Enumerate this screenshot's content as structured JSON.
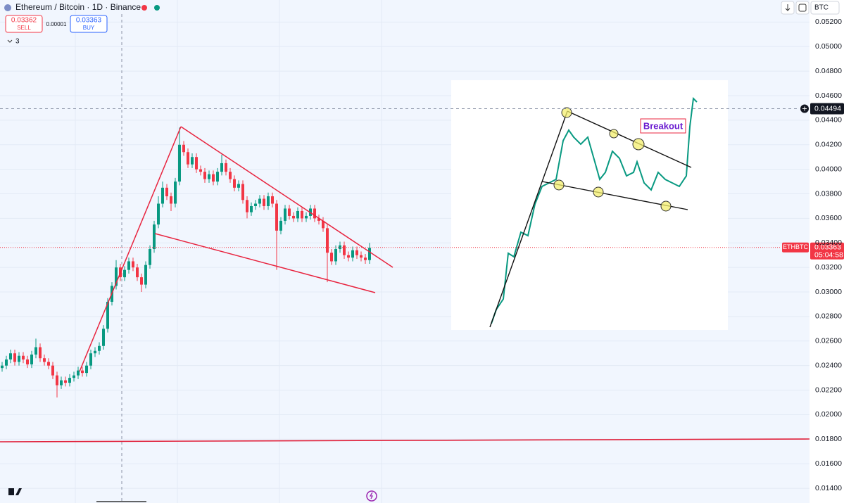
{
  "header": {
    "symbol_title": "Ethereum / Bitcoin · 1D · Binance",
    "sell_price": "0.03362",
    "sell_label": "SELL",
    "spread": "0.00001",
    "buy_price": "0.03363",
    "buy_label": "BUY",
    "indicator_count": "3",
    "currency": "BTC"
  },
  "chart_data": {
    "type": "candlestick",
    "open": [
      0.0238,
      0.024,
      0.0245,
      0.025,
      0.0243,
      0.0248,
      0.0245,
      0.0241,
      0.0249,
      0.0255,
      0.0246,
      0.0243,
      0.024,
      0.0232,
      0.0224,
      0.0228,
      0.0226,
      0.023,
      0.0232,
      0.0236,
      0.0234,
      0.024,
      0.025,
      0.0252,
      0.0256,
      0.027,
      0.0292,
      0.0305,
      0.032,
      0.0312,
      0.0318,
      0.0325,
      0.032,
      0.0312,
      0.0306,
      0.0322,
      0.0335,
      0.0355,
      0.0372,
      0.0385,
      0.0378,
      0.0372,
      0.039,
      0.042,
      0.0414,
      0.0404,
      0.041,
      0.04,
      0.0398,
      0.0392,
      0.0396,
      0.039,
      0.0398,
      0.0405,
      0.0398,
      0.0392,
      0.0385,
      0.0388,
      0.0375,
      0.0365,
      0.037,
      0.0372,
      0.0376,
      0.037,
      0.0378,
      0.0372,
      0.035,
      0.0358,
      0.0368,
      0.0362,
      0.036,
      0.0366,
      0.036,
      0.0362,
      0.0368,
      0.036,
      0.0358,
      0.0352,
      0.0332,
      0.0325,
      0.0335,
      0.0338,
      0.033,
      0.0328,
      0.0334,
      0.033,
      0.0328,
      0.0326
    ],
    "high": [
      0.0243,
      0.0248,
      0.0253,
      0.0253,
      0.0251,
      0.0251,
      0.0248,
      0.0252,
      0.0262,
      0.0258,
      0.0249,
      0.0246,
      0.0243,
      0.0235,
      0.0231,
      0.0231,
      0.0233,
      0.0235,
      0.0239,
      0.0239,
      0.0243,
      0.0253,
      0.0255,
      0.0259,
      0.0273,
      0.0295,
      0.0308,
      0.0326,
      0.0323,
      0.0321,
      0.0328,
      0.0328,
      0.0323,
      0.0315,
      0.0325,
      0.0338,
      0.0358,
      0.0378,
      0.039,
      0.0388,
      0.0381,
      0.0393,
      0.0434,
      0.0423,
      0.0417,
      0.0413,
      0.0413,
      0.0403,
      0.0401,
      0.0399,
      0.0399,
      0.0401,
      0.0412,
      0.0408,
      0.0401,
      0.0395,
      0.0391,
      0.0391,
      0.0378,
      0.0373,
      0.0375,
      0.0379,
      0.0379,
      0.0381,
      0.0381,
      0.0375,
      0.0361,
      0.0371,
      0.0371,
      0.0365,
      0.0369,
      0.0369,
      0.0365,
      0.0371,
      0.0371,
      0.0363,
      0.0361,
      0.0355,
      0.0335,
      0.0338,
      0.0341,
      0.0341,
      0.0333,
      0.0337,
      0.0337,
      0.0333,
      0.0331,
      0.034
    ],
    "low": [
      0.0235,
      0.0237,
      0.0242,
      0.024,
      0.024,
      0.0242,
      0.0238,
      0.0238,
      0.0246,
      0.0243,
      0.024,
      0.0237,
      0.0229,
      0.0214,
      0.0221,
      0.0223,
      0.0223,
      0.0227,
      0.0229,
      0.0231,
      0.0231,
      0.0237,
      0.0247,
      0.0249,
      0.0253,
      0.0267,
      0.0289,
      0.0302,
      0.0309,
      0.0309,
      0.0315,
      0.0317,
      0.0309,
      0.03,
      0.0303,
      0.0319,
      0.0332,
      0.0352,
      0.0369,
      0.0375,
      0.0366,
      0.0369,
      0.0387,
      0.0411,
      0.0401,
      0.0401,
      0.0397,
      0.0395,
      0.0389,
      0.0389,
      0.0387,
      0.0387,
      0.0395,
      0.0395,
      0.0389,
      0.0382,
      0.0382,
      0.0372,
      0.036,
      0.0362,
      0.0367,
      0.0369,
      0.0367,
      0.0367,
      0.0369,
      0.0318,
      0.0347,
      0.0355,
      0.0359,
      0.0357,
      0.0357,
      0.0357,
      0.0357,
      0.0359,
      0.0357,
      0.0355,
      0.0349,
      0.0308,
      0.0322,
      0.0322,
      0.0332,
      0.0327,
      0.0325,
      0.0325,
      0.0327,
      0.0325,
      0.0323,
      0.0323
    ],
    "close": [
      0.024,
      0.0245,
      0.025,
      0.0243,
      0.0248,
      0.0245,
      0.0241,
      0.0249,
      0.0255,
      0.0246,
      0.0243,
      0.024,
      0.0232,
      0.0224,
      0.0228,
      0.0226,
      0.023,
      0.0232,
      0.0236,
      0.0234,
      0.024,
      0.025,
      0.0252,
      0.0256,
      0.027,
      0.0292,
      0.0305,
      0.032,
      0.0312,
      0.0318,
      0.0325,
      0.032,
      0.0312,
      0.0306,
      0.0322,
      0.0335,
      0.0355,
      0.0372,
      0.0385,
      0.0378,
      0.0372,
      0.039,
      0.042,
      0.0414,
      0.0404,
      0.041,
      0.04,
      0.0398,
      0.0392,
      0.0396,
      0.039,
      0.0398,
      0.0405,
      0.0398,
      0.0392,
      0.0385,
      0.0388,
      0.0375,
      0.0365,
      0.037,
      0.0372,
      0.0376,
      0.037,
      0.0378,
      0.0372,
      0.035,
      0.0358,
      0.0368,
      0.0362,
      0.036,
      0.0366,
      0.036,
      0.0362,
      0.0368,
      0.036,
      0.0358,
      0.0352,
      0.0332,
      0.0325,
      0.0335,
      0.0338,
      0.033,
      0.0328,
      0.0334,
      0.033,
      0.0328,
      0.0326,
      0.0336
    ],
    "up_color": "#089981",
    "down_color": "#f23645",
    "ylim": [
      0.0128,
      0.0538
    ],
    "yticks": [
      {
        "value": 0.052,
        "label": "0.05200"
      },
      {
        "value": 0.05,
        "label": "0.05000"
      },
      {
        "value": 0.048,
        "label": "0.04800"
      },
      {
        "value": 0.046,
        "label": "0.04600"
      },
      {
        "value": 0.044,
        "label": "0.04400"
      },
      {
        "value": 0.042,
        "label": "0.04200"
      },
      {
        "value": 0.04,
        "label": "0.04000"
      },
      {
        "value": 0.038,
        "label": "0.03800"
      },
      {
        "value": 0.036,
        "label": "0.03600"
      },
      {
        "value": 0.034,
        "label": "0.03400"
      },
      {
        "value": 0.032,
        "label": "0.03200"
      },
      {
        "value": 0.03,
        "label": "0.03000"
      },
      {
        "value": 0.028,
        "label": "0.02800"
      },
      {
        "value": 0.026,
        "label": "0.02600"
      },
      {
        "value": 0.024,
        "label": "0.02400"
      },
      {
        "value": 0.022,
        "label": "0.02200"
      },
      {
        "value": 0.02,
        "label": "0.02000"
      },
      {
        "value": 0.018,
        "label": "0.01800"
      },
      {
        "value": 0.016,
        "label": "0.01600"
      },
      {
        "value": 0.014,
        "label": "0.01400"
      }
    ],
    "grid": true,
    "last_price": {
      "value": 0.03363,
      "label": "0.03363",
      "symbol": "ETHBTC",
      "countdown": "05:04:58"
    },
    "crosshair": {
      "value": 0.04494,
      "label": "0.04494"
    },
    "annotation": "Breakout"
  }
}
